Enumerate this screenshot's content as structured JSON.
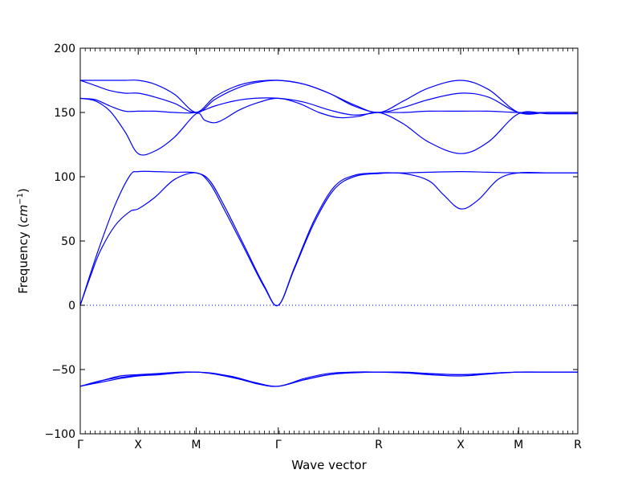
{
  "chart_data": {
    "type": "line",
    "title": "",
    "xlabel": "Wave vector",
    "ylabel": "Frequency ($cm^{-1}$)",
    "ylabel_parts": {
      "text": "Frequency (",
      "math_base": "cm",
      "math_sup": "−1",
      "close": ")"
    },
    "xlim": [
      0,
      1
    ],
    "ylim": [
      -100,
      200
    ],
    "yticks": [
      -100,
      -50,
      0,
      50,
      100,
      150,
      200
    ],
    "ytick_labels": [
      "−100",
      "−50",
      "0",
      "50",
      "100",
      "150",
      "200"
    ],
    "xticks": [
      {
        "x": 0.0,
        "label": "Γ"
      },
      {
        "x": 0.1165,
        "label": "X"
      },
      {
        "x": 0.233,
        "label": "M"
      },
      {
        "x": 0.398,
        "label": "Γ"
      },
      {
        "x": 0.6,
        "label": "R"
      },
      {
        "x": 0.7645,
        "label": "X"
      },
      {
        "x": 0.881,
        "label": "M"
      },
      {
        "x": 1.0,
        "label": "R"
      }
    ],
    "zero_line": {
      "y": 0,
      "style": "dotted",
      "color": "#0000ff"
    },
    "line_color": "#0000ff",
    "grid": false,
    "series": [
      {
        "x": [
          0,
          0.03,
          0.06,
          0.09,
          0.1165,
          0.15,
          0.19,
          0.233,
          0.27,
          0.31,
          0.35,
          0.398,
          0.45,
          0.5,
          0.55,
          0.6,
          0.65,
          0.7,
          0.7645,
          0.82,
          0.881,
          0.94,
          1.0
        ],
        "y": [
          175,
          175,
          175,
          175,
          175,
          172,
          164,
          150,
          160,
          168,
          173,
          175,
          172,
          165,
          156,
          150,
          159,
          169,
          175,
          168,
          150,
          150,
          150
        ]
      },
      {
        "x": [
          0,
          0.03,
          0.06,
          0.09,
          0.1165,
          0.15,
          0.19,
          0.233,
          0.27,
          0.31,
          0.35,
          0.398,
          0.45,
          0.5,
          0.55,
          0.6,
          0.65,
          0.7,
          0.7645,
          0.82,
          0.881,
          0.94,
          1.0
        ],
        "y": [
          175,
          171,
          167,
          165,
          165,
          162,
          157,
          150,
          162,
          170,
          174,
          175,
          172,
          165,
          155,
          150,
          154,
          160,
          165,
          162,
          150,
          150,
          150
        ]
      },
      {
        "x": [
          0,
          0.03,
          0.06,
          0.09,
          0.1165,
          0.15,
          0.19,
          0.233,
          0.27,
          0.31,
          0.35,
          0.398,
          0.45,
          0.5,
          0.55,
          0.6,
          0.65,
          0.7,
          0.7645,
          0.82,
          0.881,
          0.94,
          1.0
        ],
        "y": [
          161,
          160,
          155,
          151,
          151,
          151,
          150,
          150,
          155,
          159,
          161,
          161,
          158,
          152,
          148,
          150,
          150,
          151,
          151,
          151,
          150,
          150,
          150
        ]
      },
      {
        "x": [
          0,
          0.03,
          0.06,
          0.09,
          0.1165,
          0.15,
          0.19,
          0.233,
          0.25,
          0.27,
          0.29,
          0.32,
          0.36,
          0.398,
          0.44,
          0.48,
          0.52,
          0.56,
          0.6,
          0.65,
          0.7,
          0.7645,
          0.82,
          0.881,
          0.94,
          1.0
        ],
        "y": [
          161,
          159,
          151,
          135,
          118,
          120,
          131,
          149,
          144,
          142,
          145,
          152,
          158,
          161,
          157,
          150,
          146,
          147,
          150,
          141,
          127,
          118,
          127,
          149,
          149,
          149
        ]
      },
      {
        "x": [
          0,
          0.02,
          0.04,
          0.07,
          0.1,
          0.1165,
          0.15,
          0.19,
          0.233,
          0.26,
          0.29,
          0.33,
          0.37,
          0.398,
          0.43,
          0.47,
          0.51,
          0.55,
          0.6,
          0.65,
          0.7,
          0.7645,
          0.82,
          0.881,
          0.94,
          1.0
        ],
        "y": [
          0,
          24,
          47,
          78,
          101,
          104,
          104,
          103.5,
          103,
          97,
          77,
          46,
          15,
          0,
          29,
          66,
          92,
          101,
          103,
          103,
          103.5,
          104,
          103.5,
          103,
          103,
          103
        ]
      },
      {
        "x": [
          0,
          0.02,
          0.04,
          0.07,
          0.1,
          0.1165,
          0.15,
          0.19,
          0.233,
          0.26,
          0.29,
          0.33,
          0.37,
          0.398,
          0.43,
          0.47,
          0.51,
          0.55,
          0.6,
          0.65,
          0.7,
          0.73,
          0.7645,
          0.8,
          0.84,
          0.881,
          0.94,
          1.0
        ],
        "y": [
          0,
          22,
          42,
          62,
          73,
          75,
          84,
          98,
          103,
          95,
          74,
          44,
          14,
          0,
          28,
          64,
          90,
          100,
          102.5,
          102.5,
          97,
          86,
          75,
          82,
          98,
          103,
          103,
          103
        ]
      },
      {
        "x": [
          0,
          0.04,
          0.08,
          0.1165,
          0.16,
          0.2,
          0.233,
          0.27,
          0.32,
          0.36,
          0.398,
          0.45,
          0.5,
          0.55,
          0.6,
          0.65,
          0.7,
          0.7645,
          0.82,
          0.881,
          0.94,
          1.0
        ],
        "y": [
          -63,
          -59,
          -55,
          -54,
          -53,
          -52,
          -52,
          -53,
          -57,
          -61,
          -63,
          -58,
          -54,
          -52,
          -52,
          -52,
          -53,
          -54,
          -53,
          -52,
          -52,
          -52
        ]
      },
      {
        "x": [
          0,
          0.04,
          0.08,
          0.1165,
          0.16,
          0.2,
          0.233,
          0.27,
          0.32,
          0.36,
          0.398,
          0.45,
          0.5,
          0.55,
          0.6,
          0.65,
          0.7,
          0.7645,
          0.82,
          0.881,
          0.94,
          1.0
        ],
        "y": [
          -63,
          -60,
          -57,
          -55,
          -54,
          -52.5,
          -52,
          -53.5,
          -57.5,
          -61.5,
          -63,
          -58,
          -54,
          -52.5,
          -52,
          -52.5,
          -54,
          -55,
          -53.5,
          -52,
          -52,
          -52
        ]
      },
      {
        "x": [
          0,
          0.05,
          0.1165,
          0.18,
          0.233,
          0.3,
          0.35,
          0.398,
          0.45,
          0.5,
          0.55,
          0.6,
          0.68,
          0.7645,
          0.82,
          0.881,
          0.94,
          1.0
        ],
        "y": [
          -63,
          -58,
          -54.5,
          -53,
          -52,
          -55,
          -60,
          -63,
          -57,
          -53,
          -52,
          -52,
          -53,
          -54,
          -53,
          -52,
          -52,
          -52
        ]
      }
    ]
  }
}
